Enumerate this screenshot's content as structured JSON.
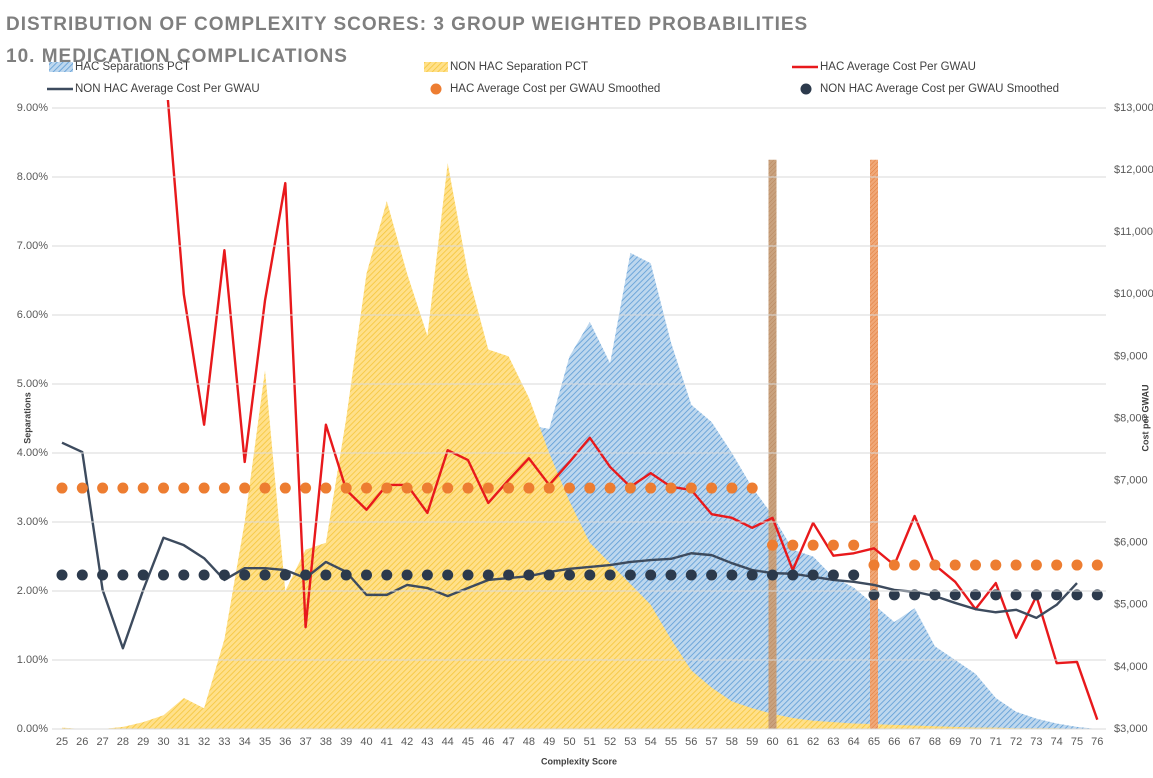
{
  "chart_data": {
    "type": "combo",
    "title": "DISTRIBUTION OF COMPLEXITY SCORES: 3 GROUP WEIGHTED PROBABILITIES",
    "subtitle": "10. MEDICATION COMPLICATIONS",
    "x_label": "Complexity Score",
    "y_label": "Separations",
    "y2_label": "Cost per GWAU",
    "categories": [
      25,
      26,
      27,
      28,
      29,
      30,
      31,
      32,
      33,
      34,
      35,
      36,
      37,
      38,
      39,
      40,
      41,
      42,
      43,
      44,
      45,
      46,
      47,
      48,
      49,
      50,
      51,
      52,
      53,
      54,
      55,
      56,
      57,
      58,
      59,
      60,
      61,
      62,
      63,
      64,
      65,
      66,
      67,
      68,
      69,
      70,
      71,
      72,
      73,
      74,
      75,
      76
    ],
    "ylim": [
      0,
      9
    ],
    "yticks": [
      {
        "value": 0,
        "label": "0.00%"
      },
      {
        "value": 1,
        "label": "1.00%"
      },
      {
        "value": 2,
        "label": "2.00%"
      },
      {
        "value": 3,
        "label": "3.00%"
      },
      {
        "value": 4,
        "label": "4.00%"
      },
      {
        "value": 5,
        "label": "5.00%"
      },
      {
        "value": 6,
        "label": "6.00%"
      },
      {
        "value": 7,
        "label": "7.00%"
      },
      {
        "value": 8,
        "label": "8.00%"
      },
      {
        "value": 9,
        "label": "9.00%"
      }
    ],
    "y2lim": [
      3000,
      13000
    ],
    "y2ticks": [
      {
        "value": 3000,
        "label": "$3,000"
      },
      {
        "value": 4000,
        "label": "$4,000"
      },
      {
        "value": 5000,
        "label": "$5,000"
      },
      {
        "value": 6000,
        "label": "$6,000"
      },
      {
        "value": 7000,
        "label": "$7,000"
      },
      {
        "value": 8000,
        "label": "$8,000"
      },
      {
        "value": 9000,
        "label": "$9,000"
      },
      {
        "value": 10000,
        "label": "$10,000"
      },
      {
        "value": 11000,
        "label": "$11,000"
      },
      {
        "value": 12000,
        "label": "$12,000"
      },
      {
        "value": 13000,
        "label": "$13,000"
      }
    ],
    "grid": true,
    "series": [
      {
        "name": "HAC Separations PCT",
        "kind": "area",
        "color": "#5b9bd5",
        "values": [
          0,
          0,
          0,
          0.02,
          0.05,
          0.1,
          0.2,
          0.3,
          0.5,
          0.7,
          1.0,
          1.3,
          1.6,
          2.0,
          2.4,
          2.8,
          3.2,
          3.5,
          3.8,
          4.1,
          4.3,
          4.4,
          4.5,
          4.4,
          4.35,
          5.4,
          5.9,
          5.3,
          6.9,
          6.75,
          5.6,
          4.7,
          4.45,
          4.0,
          3.5,
          3.1,
          2.6,
          2.5,
          2.2,
          2.05,
          1.8,
          1.55,
          1.75,
          1.2,
          1.0,
          0.8,
          0.45,
          0.25,
          0.15,
          0.08,
          0.03,
          0
        ]
      },
      {
        "name": "NON HAC Separation PCT",
        "kind": "area",
        "color": "#f5c53a",
        "values": [
          0.02,
          0,
          0,
          0.03,
          0.1,
          0.2,
          0.45,
          0.3,
          1.3,
          3.0,
          5.2,
          2.0,
          2.6,
          2.7,
          4.5,
          6.6,
          7.65,
          6.6,
          5.7,
          8.2,
          6.6,
          5.5,
          5.4,
          4.8,
          4.0,
          3.3,
          2.7,
          2.4,
          2.1,
          1.8,
          1.3,
          0.85,
          0.6,
          0.4,
          0.3,
          0.22,
          0.16,
          0.12,
          0.1,
          0.08,
          0.07,
          0.06,
          0.05,
          0.04,
          0.03,
          0.02,
          0.02,
          0.01,
          0.01,
          0.01,
          0,
          0
        ]
      },
      {
        "name": "HAC Average Cost Per GWAU",
        "kind": "line",
        "axis": "y2",
        "color": "#e8191c",
        "values": [
          null,
          null,
          null,
          null,
          null,
          14000,
          10000,
          7900,
          10710,
          7300,
          9900,
          11790,
          4640,
          7900,
          6850,
          6530,
          6930,
          6930,
          6480,
          7490,
          7330,
          6640,
          7010,
          7360,
          6930,
          7300,
          7690,
          7220,
          6900,
          7120,
          6900,
          6850,
          6460,
          6400,
          6240,
          6400,
          5560,
          6320,
          5790,
          5830,
          5910,
          5640,
          6430,
          5640,
          5370,
          4930,
          5350,
          4470,
          5140,
          4060,
          4080,
          3150
        ]
      },
      {
        "name": "NON HAC Average Cost Per GWAU",
        "kind": "line",
        "axis": "y2",
        "color": "#3d4b5e",
        "values": [
          7610,
          7460,
          5240,
          4300,
          5240,
          6080,
          5960,
          5750,
          5400,
          5590,
          5590,
          5560,
          5430,
          5690,
          5530,
          5160,
          5160,
          5320,
          5270,
          5140,
          5270,
          5400,
          5430,
          5460,
          5530,
          5580,
          5610,
          5640,
          5690,
          5720,
          5740,
          5830,
          5800,
          5670,
          5560,
          5510,
          5500,
          5450,
          5400,
          5370,
          5320,
          5240,
          5210,
          5140,
          5030,
          4930,
          4880,
          4920,
          4790,
          5000,
          5350,
          null
        ]
      },
      {
        "name": "HAC Average Cost per GWAU Smoothed",
        "kind": "dots",
        "axis": "y2",
        "color": "#ed7d31",
        "values": [
          6880,
          6880,
          6880,
          6880,
          6880,
          6880,
          6880,
          6880,
          6880,
          6880,
          6880,
          6880,
          6880,
          6880,
          6880,
          6880,
          6880,
          6880,
          6880,
          6880,
          6880,
          6880,
          6880,
          6880,
          6880,
          6880,
          6880,
          6880,
          6880,
          6880,
          6880,
          6880,
          6880,
          6880,
          6880,
          5960,
          5960,
          5960,
          5960,
          5960,
          5640,
          5640,
          5640,
          5640,
          5640,
          5640,
          5640,
          5640,
          5640,
          5640,
          5640,
          5640
        ]
      },
      {
        "name": "NON HAC Average Cost per GWAU Smoothed",
        "kind": "dots",
        "axis": "y2",
        "color": "#2c3a4c",
        "values": [
          5480,
          5480,
          5480,
          5480,
          5480,
          5480,
          5480,
          5480,
          5480,
          5480,
          5480,
          5480,
          5480,
          5480,
          5480,
          5480,
          5480,
          5480,
          5480,
          5480,
          5480,
          5480,
          5480,
          5480,
          5480,
          5480,
          5480,
          5480,
          5480,
          5480,
          5480,
          5480,
          5480,
          5480,
          5480,
          5480,
          5480,
          5480,
          5480,
          5480,
          5160,
          5160,
          5160,
          5160,
          5160,
          5160,
          5160,
          5160,
          5160,
          5160,
          5160,
          5160
        ]
      }
    ],
    "reference_bars": {
      "x": [
        60,
        65
      ],
      "values": [
        8.25,
        8.25
      ],
      "colors": [
        "#c9a27e",
        "#f0a878"
      ]
    }
  }
}
